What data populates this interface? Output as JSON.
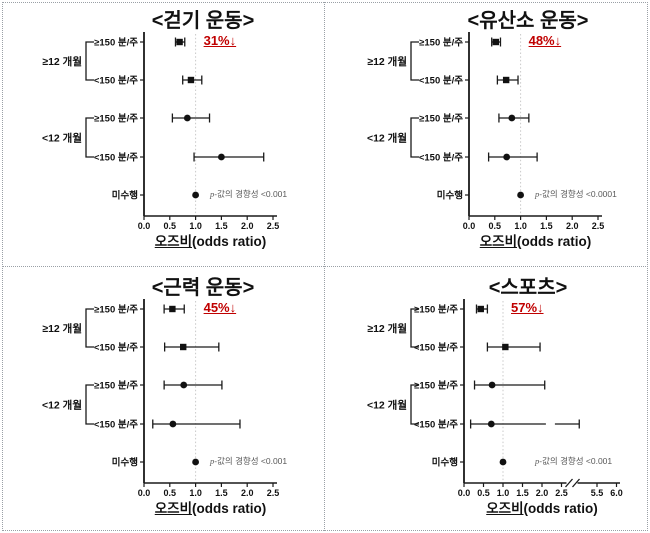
{
  "figure": {
    "background": "#ffffff",
    "border_color": "#9aa0a6",
    "layout": "2x2-forest-plots"
  },
  "colors": {
    "marker": "#111111",
    "error_bar": "#1a1a1a",
    "axis": "#1a1a1a",
    "reference_line": "#c9c9c9",
    "annotation_red": "#c00000",
    "p_text_gray": "#595959",
    "label_text": "#111111"
  },
  "chart_data": [
    {
      "type": "forest",
      "title": "<걷기 운동>",
      "reduction_annotation": "31%↓",
      "p_italic": "p",
      "p_trend": "-값의 경향성 <0.001",
      "xlabel_ko": "오즈비",
      "xlabel_en": "(odds ratio)",
      "x_ticks": [
        0.0,
        0.5,
        1.0,
        1.5,
        2.0,
        2.5
      ],
      "xlim": [
        0,
        2.5
      ],
      "ref_line": 1.0,
      "axis_break": false,
      "groups": [
        {
          "label": "≥12 개월",
          "rows": [
            {
              "label": "≥150 분/주",
              "or": 0.69,
              "ci_low": 0.61,
              "ci_high": 0.79,
              "marker": "square"
            },
            {
              "label": "<150 분/주",
              "or": 0.91,
              "ci_low": 0.75,
              "ci_high": 1.12,
              "marker": "square"
            }
          ]
        },
        {
          "label": "<12 개월",
          "rows": [
            {
              "label": "≥150 분/주",
              "or": 0.84,
              "ci_low": 0.55,
              "ci_high": 1.27,
              "marker": "circle"
            },
            {
              "label": "<150 분/주",
              "or": 1.5,
              "ci_low": 0.97,
              "ci_high": 2.32,
              "marker": "circle"
            }
          ]
        }
      ],
      "reference_row": {
        "label": "미수행",
        "or": 1.0,
        "marker": "circle"
      }
    },
    {
      "type": "forest",
      "title": "<유산소 운동>",
      "reduction_annotation": "48%↓",
      "p_italic": "p",
      "p_trend": "-값의 경향성 <0.0001",
      "xlabel_ko": "오즈비",
      "xlabel_en": "(odds ratio)",
      "x_ticks": [
        0.0,
        0.5,
        1.0,
        1.5,
        2.0,
        2.5
      ],
      "xlim": [
        0,
        2.5
      ],
      "ref_line": 1.0,
      "axis_break": false,
      "groups": [
        {
          "label": "≥12 개월",
          "rows": [
            {
              "label": "≥150 분/주",
              "or": 0.52,
              "ci_low": 0.44,
              "ci_high": 0.61,
              "marker": "square"
            },
            {
              "label": "<150 분/주",
              "or": 0.72,
              "ci_low": 0.55,
              "ci_high": 0.95,
              "marker": "square"
            }
          ]
        },
        {
          "label": "<12 개월",
          "rows": [
            {
              "label": "≥150 분/주",
              "or": 0.83,
              "ci_low": 0.58,
              "ci_high": 1.16,
              "marker": "circle"
            },
            {
              "label": "<150 분/주",
              "or": 0.73,
              "ci_low": 0.38,
              "ci_high": 1.32,
              "marker": "circle"
            }
          ]
        }
      ],
      "reference_row": {
        "label": "미수행",
        "or": 1.0,
        "marker": "circle"
      }
    },
    {
      "type": "forest",
      "title": "<근력 운동>",
      "reduction_annotation": "45%↓",
      "p_italic": "p",
      "p_trend": "-값의 경향성 <0.001",
      "xlabel_ko": "오즈비",
      "xlabel_en": "(odds ratio)",
      "x_ticks": [
        0.0,
        0.5,
        1.0,
        1.5,
        2.0,
        2.5
      ],
      "xlim": [
        0,
        2.5
      ],
      "ref_line": 1.0,
      "axis_break": false,
      "groups": [
        {
          "label": "≥12 개월",
          "rows": [
            {
              "label": "≥150 분/주",
              "or": 0.55,
              "ci_low": 0.39,
              "ci_high": 0.78,
              "marker": "square"
            },
            {
              "label": "<150 분/주",
              "or": 0.76,
              "ci_low": 0.4,
              "ci_high": 1.45,
              "marker": "square"
            }
          ]
        },
        {
          "label": "<12 개월",
          "rows": [
            {
              "label": "≥150 분/주",
              "or": 0.77,
              "ci_low": 0.39,
              "ci_high": 1.51,
              "marker": "circle"
            },
            {
              "label": "<150 분/주",
              "or": 0.56,
              "ci_low": 0.17,
              "ci_high": 1.86,
              "marker": "circle"
            }
          ]
        }
      ],
      "reference_row": {
        "label": "미수행",
        "or": 1.0,
        "marker": "circle"
      }
    },
    {
      "type": "forest",
      "title": "<스포츠>",
      "reduction_annotation": "57%↓",
      "p_italic": "p",
      "p_trend": "-값의 경향성 <0.001",
      "xlabel_ko": "오즈비",
      "xlabel_en": "(odds ratio)",
      "x_ticks": [
        0.0,
        0.5,
        1.0,
        1.5,
        2.0,
        2.5,
        5.5,
        6.0
      ],
      "xlim": [
        0,
        6.0
      ],
      "ref_line": 1.0,
      "axis_break": true,
      "axis_break_between": [
        2.5,
        5.5
      ],
      "groups": [
        {
          "label": "≥12 개월",
          "rows": [
            {
              "label": "≥150 분/주",
              "or": 0.43,
              "ci_low": 0.32,
              "ci_high": 0.6,
              "marker": "square"
            },
            {
              "label": "<150 분/주",
              "or": 1.06,
              "ci_low": 0.6,
              "ci_high": 1.95,
              "marker": "square"
            }
          ]
        },
        {
          "label": "<12 개월",
          "rows": [
            {
              "label": "≥150 분/주",
              "or": 0.72,
              "ci_low": 0.27,
              "ci_high": 2.07,
              "marker": "circle"
            },
            {
              "label": "<150 분/주",
              "or": 0.7,
              "ci_low": 0.17,
              "ci_high": 4.0,
              "marker": "circle",
              "bar_break": true
            }
          ]
        }
      ],
      "reference_row": {
        "label": "미수행",
        "or": 1.0,
        "marker": "circle"
      }
    }
  ]
}
